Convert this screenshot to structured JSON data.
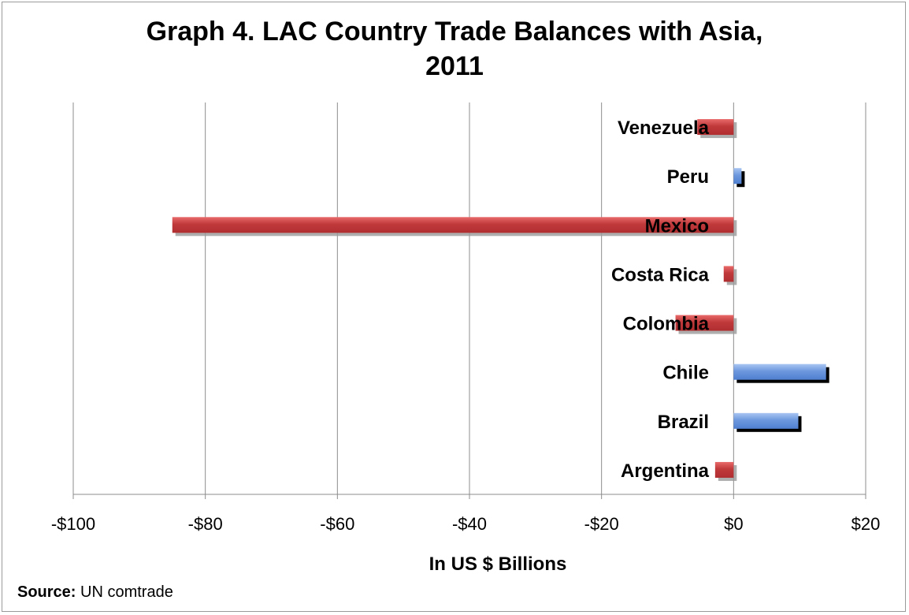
{
  "chart_data": {
    "type": "bar",
    "orientation": "horizontal",
    "title_lines": [
      "Graph 4. LAC Country Trade Balances with Asia,",
      "2011"
    ],
    "categories": [
      "Venezuela",
      "Peru",
      "Mexico",
      "Costa Rica",
      "Colombia",
      "Chile",
      "Brazil",
      "Argentina"
    ],
    "values": [
      -5.5,
      1.2,
      -85,
      -1.5,
      -8.8,
      14,
      9.8,
      -2.8
    ],
    "xlabel": "In US $ Billions",
    "ylabel": "",
    "xlim": [
      -100,
      20
    ],
    "ticks": [
      "-$100",
      "-$80",
      "-$60",
      "-$40",
      "-$20",
      "$0",
      "$20"
    ],
    "tick_values": [
      -100,
      -80,
      -60,
      -40,
      -20,
      0,
      20
    ],
    "grid": true,
    "colors": {
      "negative": "#c0393b",
      "positive": "#6d98de",
      "shadow_negative": "#9a9a9a",
      "shadow_positive": "#000000"
    }
  },
  "source": {
    "label": "Source:",
    "text": " UN comtrade"
  }
}
